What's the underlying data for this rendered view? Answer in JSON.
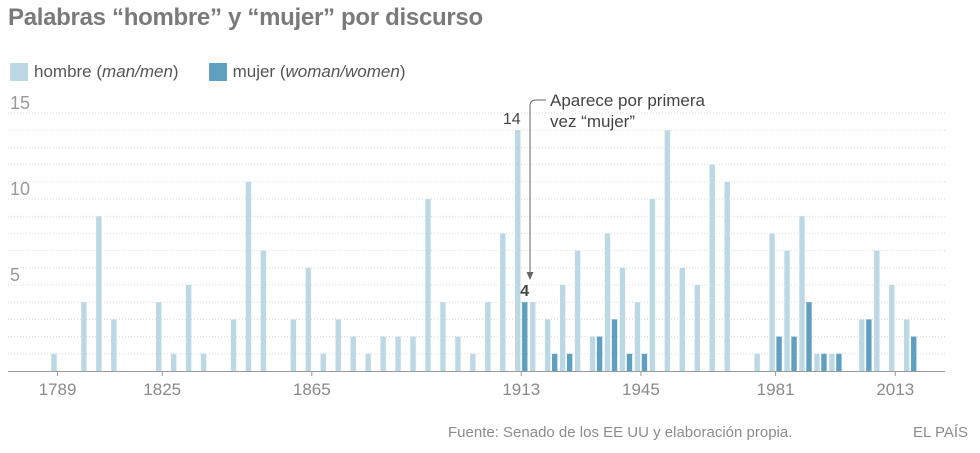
{
  "title": "Palabras “hombre” y “mujer” por discurso",
  "legend": {
    "hombre": {
      "word": "hombre",
      "en": "man/men"
    },
    "mujer": {
      "word": "mujer",
      "en": "woman/women"
    }
  },
  "annotation": {
    "line1": "Aparece por primera",
    "line2": "vez “mujer”"
  },
  "source": "Fuente: Senado de los EE UU y elaboración propia.",
  "brand": "EL PAÍS",
  "colors": {
    "hombre": "#bcd8e5",
    "mujer": "#5f9fbf",
    "grid": "#d9d9d9",
    "axis": "#999999"
  },
  "chart_data": {
    "type": "bar",
    "ylim": [
      0,
      15
    ],
    "yticks": [
      5,
      10,
      15
    ],
    "grid": true,
    "xtick_labels": [
      "1789",
      "1825",
      "1865",
      "1913",
      "1945",
      "1981",
      "2013"
    ],
    "xtick_index": [
      0,
      7,
      17,
      31,
      39,
      48,
      56
    ],
    "data_labels": [
      {
        "index": 31,
        "series": "hombre",
        "text": "14"
      },
      {
        "index": 31,
        "series": "mujer",
        "text": "4"
      }
    ],
    "series": [
      {
        "name": "hombre",
        "values": [
          1,
          0,
          4,
          9,
          3,
          0,
          0,
          4,
          1,
          5,
          1,
          0,
          3,
          11,
          7,
          0,
          3,
          6,
          1,
          3,
          2,
          1,
          2,
          2,
          2,
          10,
          4,
          2,
          1,
          4,
          8,
          14,
          4,
          3,
          5,
          7,
          2,
          8,
          6,
          4,
          10,
          14,
          6,
          5,
          12,
          11,
          0,
          1,
          8,
          7,
          9,
          1,
          1,
          0,
          3,
          7,
          5,
          3
        ]
      },
      {
        "name": "mujer",
        "values": [
          0,
          0,
          0,
          0,
          0,
          0,
          0,
          0,
          0,
          0,
          0,
          0,
          0,
          0,
          0,
          0,
          0,
          0,
          0,
          0,
          0,
          0,
          0,
          0,
          0,
          0,
          0,
          0,
          0,
          0,
          0,
          4,
          0,
          1,
          1,
          0,
          2,
          3,
          1,
          1,
          0,
          0,
          0,
          0,
          0,
          0,
          0,
          0,
          2,
          2,
          4,
          1,
          1,
          0,
          3,
          0,
          0,
          2
        ]
      }
    ]
  }
}
